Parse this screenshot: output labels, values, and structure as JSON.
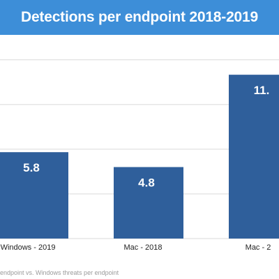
{
  "colors": {
    "title_bar": "#3d8ed8",
    "bar": "#2f5f9b",
    "gridline": "#d9d9d9",
    "bar_label": "#ffffff",
    "axis_label": "#222222",
    "footnote": "#9a9a9a"
  },
  "header": {
    "title": "Detections per endpoint 2018-2019"
  },
  "footer": {
    "note": "endpoint vs. Windows threats per endpoint"
  },
  "chart_data": {
    "type": "bar",
    "title": "Detections per endpoint 2018-2019",
    "categories": [
      "Windows - 2019",
      "Mac - 2018",
      "Mac - 2"
    ],
    "values": [
      5.8,
      4.8,
      11
    ],
    "value_labels": [
      "5.8",
      "4.8",
      "11."
    ],
    "xlabel": "",
    "ylabel": "",
    "ylim": [
      0,
      12
    ],
    "grid": true,
    "legend": "none"
  }
}
